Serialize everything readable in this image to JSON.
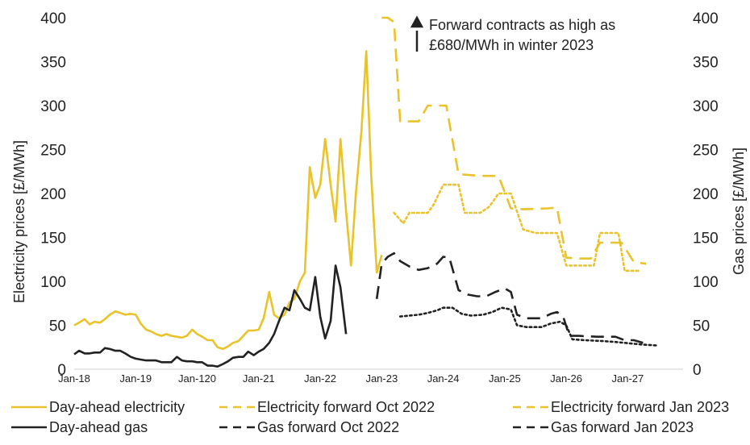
{
  "chart_data": {
    "type": "line",
    "title": "",
    "xlabel": "",
    "ylabel_left": "Electricity prices [£/MWh]",
    "ylabel_right": "Gas prices [£/MWh]",
    "y_left_ticks": [
      "0",
      "50",
      "100",
      "150",
      "200",
      "250",
      "300",
      "350",
      "400"
    ],
    "y_right_ticks": [
      "0",
      "50",
      "100",
      "150",
      "200",
      "250",
      "300",
      "350",
      "400"
    ],
    "ylim_left": [
      0,
      400
    ],
    "ylim_right": [
      0,
      400
    ],
    "x_ticks": [
      {
        "label": "Jan-18",
        "t": 2018.0
      },
      {
        "label": "Jan-19",
        "t": 2019.0
      },
      {
        "label": "Jan-120",
        "t": 2020.0
      },
      {
        "label": "Jan-21",
        "t": 2021.0
      },
      {
        "label": "Jan-22",
        "t": 2022.0
      },
      {
        "label": "Jan-23",
        "t": 2023.0
      },
      {
        "label": "Jan-24",
        "t": 2024.0
      },
      {
        "label": "Jan-25",
        "t": 2025.0
      },
      {
        "label": "Jan-26",
        "t": 2026.0
      },
      {
        "label": "Jan-27",
        "t": 2027.0
      }
    ],
    "xlim": [
      2018.0,
      2027.9
    ],
    "grid": false,
    "annotation": {
      "lines": [
        "Forward contracts as high as",
        "£680/MWh in winter 2023"
      ],
      "x": 2023.45,
      "y": 395
    },
    "series": [
      {
        "name": "Day-ahead electricity",
        "axis": "left",
        "color": "#E8C32B",
        "dash": "solid",
        "points": [
          [
            2018.0,
            50
          ],
          [
            2018.08,
            53
          ],
          [
            2018.17,
            57
          ],
          [
            2018.25,
            51
          ],
          [
            2018.33,
            54
          ],
          [
            2018.42,
            53
          ],
          [
            2018.5,
            57
          ],
          [
            2018.58,
            62
          ],
          [
            2018.67,
            66
          ],
          [
            2018.75,
            64
          ],
          [
            2018.83,
            62
          ],
          [
            2018.92,
            63
          ],
          [
            2019.0,
            62
          ],
          [
            2019.08,
            52
          ],
          [
            2019.17,
            45
          ],
          [
            2019.25,
            43
          ],
          [
            2019.33,
            40
          ],
          [
            2019.42,
            38
          ],
          [
            2019.5,
            40
          ],
          [
            2019.58,
            38
          ],
          [
            2019.67,
            37
          ],
          [
            2019.75,
            36
          ],
          [
            2019.83,
            38
          ],
          [
            2019.92,
            45
          ],
          [
            2020.0,
            40
          ],
          [
            2020.08,
            37
          ],
          [
            2020.17,
            33
          ],
          [
            2020.25,
            33
          ],
          [
            2020.33,
            25
          ],
          [
            2020.42,
            23
          ],
          [
            2020.5,
            26
          ],
          [
            2020.58,
            30
          ],
          [
            2020.67,
            32
          ],
          [
            2020.75,
            38
          ],
          [
            2020.83,
            44
          ],
          [
            2020.92,
            44
          ],
          [
            2021.0,
            45
          ],
          [
            2021.08,
            58
          ],
          [
            2021.17,
            88
          ],
          [
            2021.25,
            62
          ],
          [
            2021.33,
            58
          ],
          [
            2021.42,
            62
          ],
          [
            2021.5,
            76
          ],
          [
            2021.58,
            80
          ],
          [
            2021.67,
            100
          ],
          [
            2021.75,
            110
          ],
          [
            2021.83,
            230
          ],
          [
            2021.92,
            195
          ],
          [
            2022.0,
            210
          ],
          [
            2022.08,
            262
          ],
          [
            2022.17,
            210
          ],
          [
            2022.25,
            168
          ],
          [
            2022.33,
            262
          ],
          [
            2022.42,
            180
          ],
          [
            2022.5,
            118
          ],
          [
            2022.58,
            200
          ],
          [
            2022.67,
            270
          ],
          [
            2022.75,
            362
          ],
          [
            2022.83,
            220
          ],
          [
            2022.92,
            110
          ],
          [
            2023.0,
            130
          ]
        ]
      },
      {
        "name": "Electricity forward Oct 2022",
        "axis": "left",
        "color": "#E8C32B",
        "dash": "long",
        "points": [
          [
            2023.0,
            400
          ],
          [
            2023.1,
            400
          ],
          [
            2023.2,
            395
          ],
          [
            2023.3,
            282
          ],
          [
            2023.45,
            282
          ],
          [
            2023.6,
            282
          ],
          [
            2023.75,
            300
          ],
          [
            2023.9,
            300
          ],
          [
            2024.05,
            300
          ],
          [
            2024.25,
            222
          ],
          [
            2024.6,
            220
          ],
          [
            2024.9,
            220
          ],
          [
            2025.1,
            183
          ],
          [
            2025.3,
            182
          ],
          [
            2025.7,
            183
          ],
          [
            2025.85,
            184
          ],
          [
            2026.0,
            127
          ],
          [
            2026.2,
            126
          ],
          [
            2026.4,
            126
          ],
          [
            2026.55,
            144
          ],
          [
            2026.75,
            144
          ],
          [
            2026.9,
            144
          ],
          [
            2027.1,
            122
          ],
          [
            2027.3,
            120
          ]
        ]
      },
      {
        "name": "Electricity forward Jan 2023",
        "axis": "left",
        "color": "#E8C32B",
        "dash": "dotted",
        "points": [
          [
            2023.2,
            178
          ],
          [
            2023.35,
            166
          ],
          [
            2023.45,
            178
          ],
          [
            2023.75,
            178
          ],
          [
            2023.85,
            188
          ],
          [
            2024.0,
            210
          ],
          [
            2024.25,
            210
          ],
          [
            2024.35,
            178
          ],
          [
            2024.6,
            178
          ],
          [
            2024.75,
            185
          ],
          [
            2024.9,
            200
          ],
          [
            2025.1,
            200
          ],
          [
            2025.3,
            159
          ],
          [
            2025.5,
            155
          ],
          [
            2025.85,
            155
          ],
          [
            2026.0,
            118
          ],
          [
            2026.25,
            118
          ],
          [
            2026.45,
            118
          ],
          [
            2026.55,
            155
          ],
          [
            2026.85,
            155
          ],
          [
            2026.95,
            112
          ],
          [
            2027.2,
            112
          ]
        ]
      },
      {
        "name": "Day-ahead gas",
        "axis": "right",
        "color": "#222222",
        "dash": "solid",
        "points": [
          [
            2018.0,
            17
          ],
          [
            2018.08,
            21
          ],
          [
            2018.17,
            18
          ],
          [
            2018.25,
            18
          ],
          [
            2018.33,
            19
          ],
          [
            2018.42,
            19
          ],
          [
            2018.5,
            24
          ],
          [
            2018.58,
            23
          ],
          [
            2018.67,
            21
          ],
          [
            2018.75,
            21
          ],
          [
            2018.83,
            18
          ],
          [
            2018.92,
            14
          ],
          [
            2019.0,
            12
          ],
          [
            2019.08,
            11
          ],
          [
            2019.17,
            10
          ],
          [
            2019.25,
            10
          ],
          [
            2019.33,
            10
          ],
          [
            2019.42,
            8
          ],
          [
            2019.5,
            8
          ],
          [
            2019.58,
            8
          ],
          [
            2019.67,
            14
          ],
          [
            2019.75,
            10
          ],
          [
            2019.83,
            9
          ],
          [
            2019.92,
            9
          ],
          [
            2020.0,
            8
          ],
          [
            2020.08,
            8
          ],
          [
            2020.17,
            4
          ],
          [
            2020.25,
            4
          ],
          [
            2020.33,
            3
          ],
          [
            2020.42,
            6
          ],
          [
            2020.5,
            9
          ],
          [
            2020.58,
            13
          ],
          [
            2020.67,
            14
          ],
          [
            2020.75,
            14
          ],
          [
            2020.83,
            20
          ],
          [
            2020.92,
            16
          ],
          [
            2021.0,
            20
          ],
          [
            2021.08,
            23
          ],
          [
            2021.17,
            30
          ],
          [
            2021.25,
            40
          ],
          [
            2021.33,
            55
          ],
          [
            2021.42,
            70
          ],
          [
            2021.5,
            67
          ],
          [
            2021.58,
            90
          ],
          [
            2021.67,
            80
          ],
          [
            2021.75,
            70
          ],
          [
            2021.83,
            67
          ],
          [
            2021.92,
            105
          ],
          [
            2022.0,
            60
          ],
          [
            2022.08,
            35
          ],
          [
            2022.17,
            55
          ],
          [
            2022.25,
            118
          ],
          [
            2022.33,
            93
          ],
          [
            2022.42,
            40
          ]
        ]
      },
      {
        "name": "Gas forward Oct 2022",
        "axis": "right",
        "color": "#222222",
        "dash": "long",
        "points": [
          [
            2022.92,
            80
          ],
          [
            2023.0,
            120
          ],
          [
            2023.1,
            128
          ],
          [
            2023.2,
            132
          ],
          [
            2023.3,
            123
          ],
          [
            2023.45,
            117
          ],
          [
            2023.6,
            113
          ],
          [
            2023.75,
            115
          ],
          [
            2023.9,
            120
          ],
          [
            2024.0,
            128
          ],
          [
            2024.1,
            127
          ],
          [
            2024.25,
            90
          ],
          [
            2024.4,
            85
          ],
          [
            2024.55,
            83
          ],
          [
            2024.7,
            83
          ],
          [
            2024.85,
            88
          ],
          [
            2025.0,
            92
          ],
          [
            2025.1,
            88
          ],
          [
            2025.2,
            62
          ],
          [
            2025.35,
            58
          ],
          [
            2025.6,
            58
          ],
          [
            2025.75,
            63
          ],
          [
            2025.85,
            65
          ],
          [
            2025.95,
            60
          ],
          [
            2026.05,
            38
          ],
          [
            2026.2,
            38
          ],
          [
            2026.5,
            37
          ],
          [
            2026.8,
            37
          ],
          [
            2026.95,
            33
          ],
          [
            2027.1,
            33
          ],
          [
            2027.25,
            30
          ]
        ]
      },
      {
        "name": "Gas forward Jan 2023",
        "axis": "right",
        "color": "#222222",
        "dash": "dotted",
        "points": [
          [
            2023.3,
            60
          ],
          [
            2023.45,
            61
          ],
          [
            2023.6,
            62
          ],
          [
            2023.75,
            64
          ],
          [
            2023.9,
            67
          ],
          [
            2024.0,
            70
          ],
          [
            2024.15,
            70
          ],
          [
            2024.3,
            63
          ],
          [
            2024.45,
            61
          ],
          [
            2024.65,
            62
          ],
          [
            2024.8,
            65
          ],
          [
            2024.95,
            70
          ],
          [
            2025.1,
            68
          ],
          [
            2025.2,
            50
          ],
          [
            2025.35,
            48
          ],
          [
            2025.6,
            48
          ],
          [
            2025.75,
            52
          ],
          [
            2025.9,
            54
          ],
          [
            2026.0,
            50
          ],
          [
            2026.1,
            34
          ],
          [
            2026.3,
            33
          ],
          [
            2026.6,
            32
          ],
          [
            2026.8,
            31
          ],
          [
            2026.95,
            30
          ],
          [
            2027.1,
            29
          ],
          [
            2027.25,
            28
          ],
          [
            2027.5,
            27
          ]
        ]
      }
    ],
    "legend": {
      "position": "bottom",
      "rows": [
        [
          "Day-ahead electricity",
          "Electricity forward Oct 2022",
          "Electricity forward Jan 2023"
        ],
        [
          "Day-ahead gas",
          "Gas forward Oct 2022",
          "Gas forward Jan 2023"
        ]
      ]
    }
  }
}
